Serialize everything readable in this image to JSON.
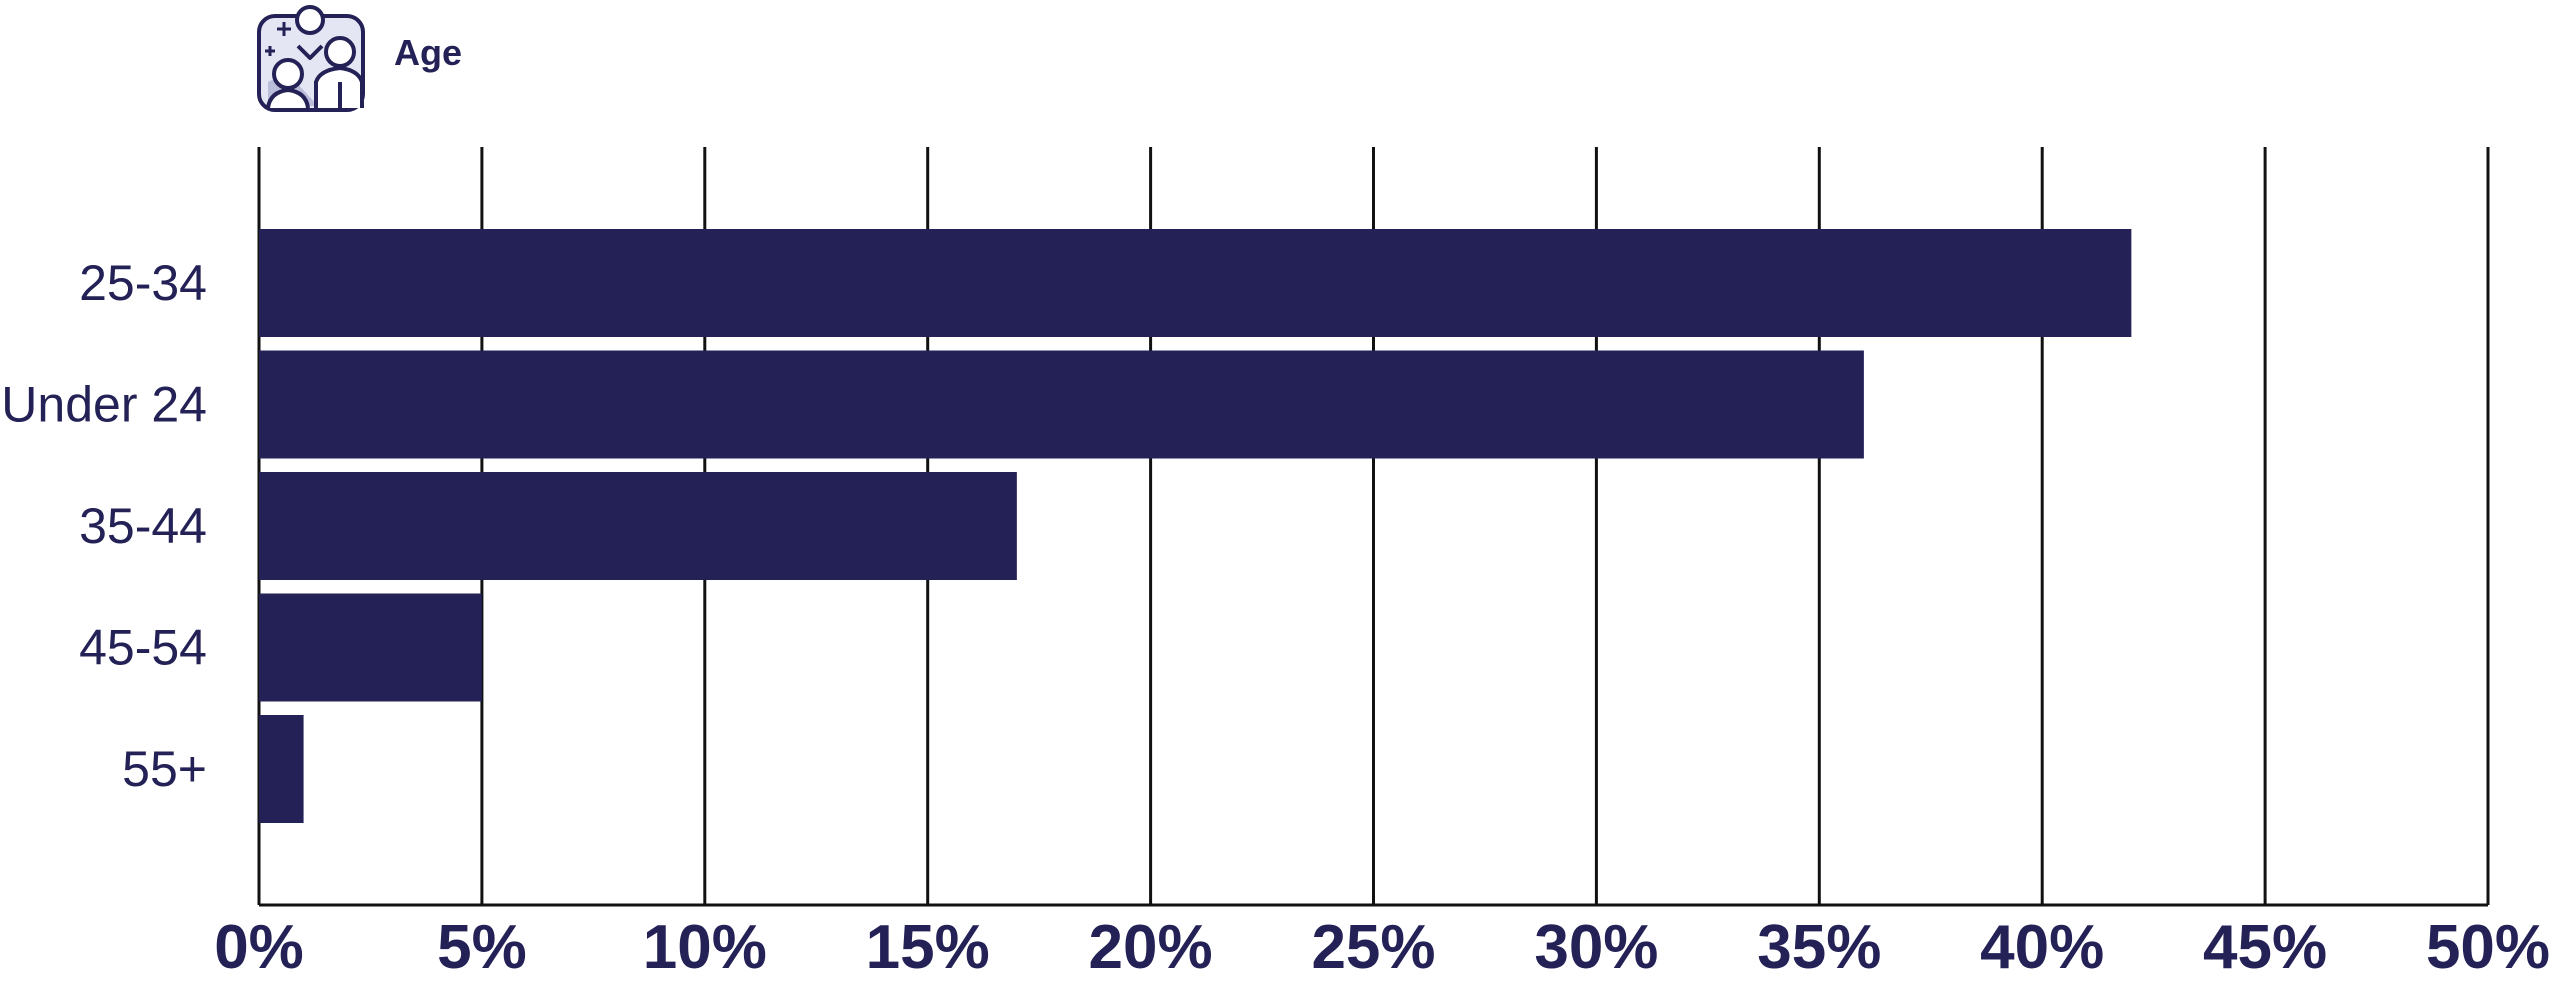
{
  "header": {
    "title": "Age",
    "icon": "people-group-icon"
  },
  "colors": {
    "bar": "#232155",
    "grid": "#111111",
    "text": "#232155"
  },
  "chart_data": {
    "type": "bar",
    "orientation": "horizontal",
    "title": "Age",
    "categories": [
      "25-34",
      "Under 24",
      "35-44",
      "45-54",
      "55+"
    ],
    "values": [
      42,
      36,
      17,
      5,
      1
    ],
    "xlabel": "",
    "ylabel": "",
    "xlim": [
      0,
      50
    ],
    "x_ticks": [
      0,
      5,
      10,
      15,
      20,
      25,
      30,
      35,
      40,
      45,
      50
    ],
    "x_tick_labels": [
      "0%",
      "5%",
      "10%",
      "15%",
      "20%",
      "25%",
      "30%",
      "35%",
      "40%",
      "45%",
      "50%"
    ],
    "grid": "vertical",
    "legend": "none"
  }
}
